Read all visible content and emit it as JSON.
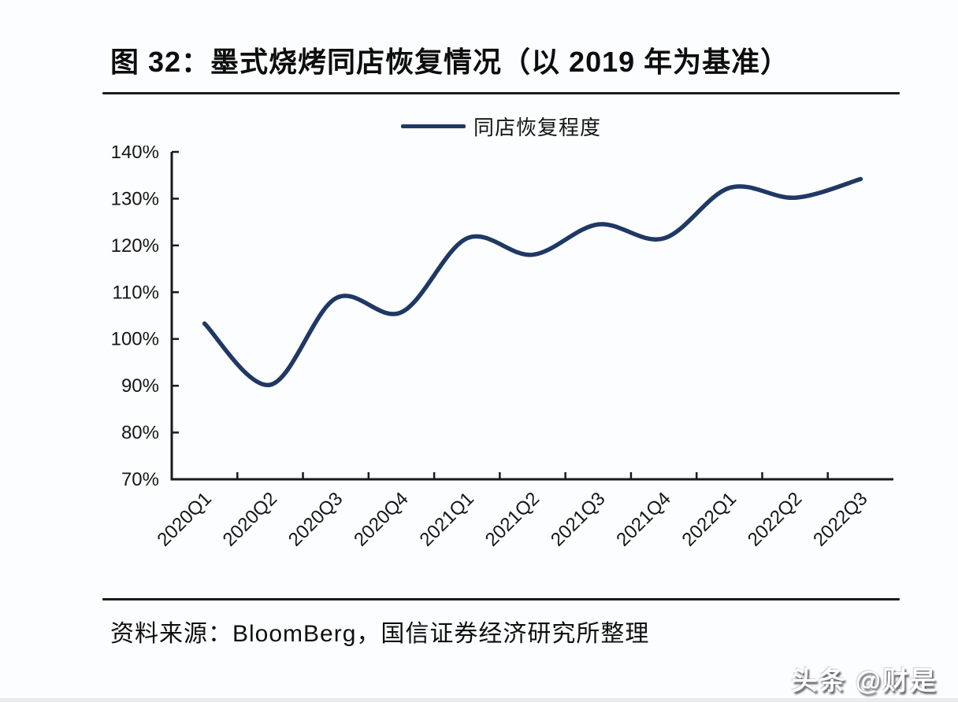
{
  "figure": {
    "title": "图 32：墨式烧烤同店恢复情况（以 2019 年为基准）",
    "source": "资料来源：BloomBerg，国信证券经济研究所整理",
    "watermark": "头条 @财是"
  },
  "legend": {
    "label": "同店恢复程度"
  },
  "chart_data": {
    "type": "line",
    "title": "墨式烧烤同店恢复情况（以 2019 年为基准）",
    "legend_entries": [
      "同店恢复程度"
    ],
    "legend_position": "top-center",
    "categories": [
      "2020Q1",
      "2020Q2",
      "2020Q3",
      "2020Q4",
      "2021Q1",
      "2021Q2",
      "2021Q3",
      "2021Q4",
      "2022Q1",
      "2022Q2",
      "2022Q3"
    ],
    "series": [
      {
        "name": "同店恢复程度",
        "values": [
          103.3,
          90.2,
          108.7,
          105.7,
          121.5,
          118.0,
          124.5,
          121.5,
          132.3,
          130.2,
          134.2
        ]
      }
    ],
    "ylim": [
      70,
      140
    ],
    "ytick_step": 10,
    "ytick_labels": [
      "140%",
      "130%",
      "120%",
      "110%",
      "100%",
      "90%",
      "80%",
      "70%"
    ],
    "xlabel": "",
    "ylabel": "",
    "grid": false,
    "x_label_rotation_deg": -45,
    "line_color": "#1f3864",
    "axis_color": "#1a1a1a"
  },
  "colors": {
    "background": "#fcfdfe",
    "divider": "#1a1a1a",
    "title_text": "#0d0d0d",
    "accent_line": "#1f3864"
  }
}
